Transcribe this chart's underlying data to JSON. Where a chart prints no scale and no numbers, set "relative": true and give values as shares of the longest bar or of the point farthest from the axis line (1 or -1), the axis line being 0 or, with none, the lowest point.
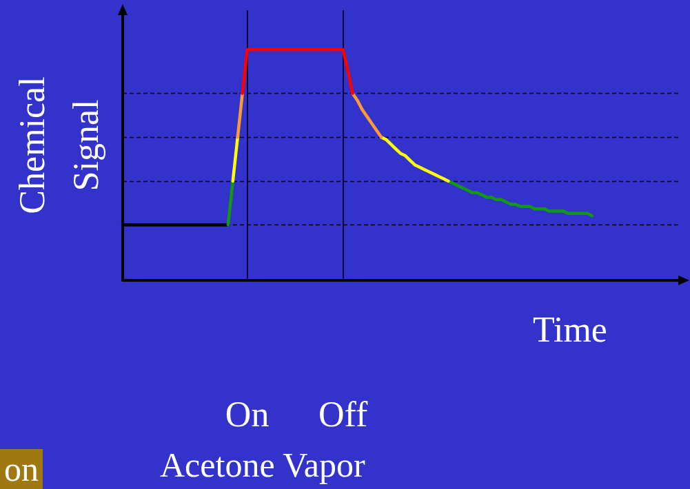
{
  "chart_data": {
    "type": "line",
    "relative": true,
    "xlabel": "Time",
    "ylabel": "Chemical Signal",
    "annotations": [
      "Acetone Vapor",
      "on"
    ],
    "grid": false,
    "marker": "none",
    "line_style": "solid",
    "categories": [
      null,
      null,
      null,
      null,
      null,
      null,
      null,
      null,
      null,
      null,
      null,
      null,
      null,
      null,
      null,
      null,
      null,
      null,
      null,
      null,
      null,
      null,
      null,
      null,
      null,
      null,
      "On",
      null,
      null,
      null,
      null,
      null,
      null,
      null,
      null,
      null,
      null,
      null,
      null,
      null,
      null,
      null,
      null,
      null,
      null,
      null,
      "Off",
      null,
      null,
      null,
      null,
      null,
      null,
      null,
      null,
      null,
      null,
      null,
      null,
      null,
      null,
      null,
      null,
      null,
      null,
      null,
      null,
      null,
      null,
      null,
      null,
      null,
      null,
      null,
      null,
      null,
      null,
      null,
      null,
      null,
      null,
      null,
      null,
      null,
      null,
      null,
      null,
      null,
      null,
      null,
      null,
      null,
      null,
      null,
      null,
      null,
      null,
      null,
      null,
      null,
      null,
      null,
      null,
      null,
      null,
      null,
      null,
      null,
      null,
      null,
      null,
      null,
      null,
      null,
      null,
      null,
      null
    ],
    "ref_lines": [
      {
        "axis": "y",
        "value": 0.24,
        "line_style": "dashed",
        "color": "#000000"
      },
      {
        "axis": "y",
        "value": 0.43,
        "line_style": "dashed",
        "color": "#000000"
      },
      {
        "axis": "y",
        "value": 0.62,
        "line_style": "dashed",
        "color": "#000000"
      },
      {
        "axis": "y",
        "value": 0.81,
        "line_style": "dashed",
        "color": "#000000"
      },
      {
        "axis": "x",
        "value": "On",
        "line_style": "solid",
        "color": "#000000"
      },
      {
        "axis": "x",
        "value": "Off",
        "line_style": "solid",
        "color": "#000000"
      }
    ],
    "series": [
      {
        "color": "#000000",
        "values": [
          0.24,
          0.24,
          0.24,
          0.24,
          0.24,
          0.24,
          0.24,
          0.24,
          0.24,
          0.24,
          0.24,
          0.24,
          0.24,
          0.24,
          0.24,
          0.24,
          0.24,
          0.24,
          0.24,
          0.24,
          0.24,
          0.24,
          0.24,
          null,
          null,
          null,
          null,
          null,
          null,
          null,
          null,
          null,
          null,
          null,
          null,
          null,
          null,
          null,
          null,
          null,
          null,
          null,
          null,
          null,
          null,
          null,
          null,
          null,
          null,
          null,
          null,
          null,
          null,
          null,
          null,
          null,
          null,
          null,
          null,
          null,
          null,
          null,
          null,
          null,
          null,
          null,
          null,
          null,
          null,
          null,
          null,
          null,
          null,
          null,
          null,
          null,
          null,
          null,
          null,
          null,
          null,
          null,
          null,
          null,
          null,
          null,
          null,
          null,
          null,
          null,
          null,
          null,
          null,
          null,
          null,
          null,
          null,
          null,
          null,
          null,
          null,
          null,
          null,
          null,
          null,
          null,
          null,
          null,
          null,
          null,
          null,
          null,
          null,
          null,
          null,
          null,
          null
        ]
      },
      {
        "color": "#119911",
        "values": [
          null,
          null,
          null,
          null,
          null,
          null,
          null,
          null,
          null,
          null,
          null,
          null,
          null,
          null,
          null,
          null,
          null,
          null,
          null,
          null,
          null,
          null,
          0.24,
          0.43,
          null,
          null,
          null,
          null,
          null,
          null,
          null,
          null,
          null,
          null,
          null,
          null,
          null,
          null,
          null,
          null,
          null,
          null,
          null,
          null,
          null,
          null,
          null,
          null,
          null,
          null,
          null,
          null,
          null,
          null,
          null,
          null,
          null,
          null,
          null,
          null,
          null,
          null,
          null,
          null,
          null,
          null,
          null,
          null,
          0.43,
          0.42,
          0.41,
          0.4,
          0.39,
          0.38,
          0.38,
          0.37,
          0.36,
          0.36,
          0.35,
          0.35,
          0.34,
          0.33,
          0.33,
          0.32,
          0.32,
          0.32,
          0.31,
          0.31,
          0.31,
          0.3,
          0.3,
          0.3,
          0.3,
          0.29,
          0.29,
          0.29,
          0.29,
          0.29,
          0.28,
          null,
          null,
          null,
          null,
          null,
          null,
          null,
          null,
          null,
          null,
          null,
          null,
          null,
          null,
          null,
          null,
          null,
          null
        ]
      },
      {
        "color": "#ffff00",
        "values": [
          null,
          null,
          null,
          null,
          null,
          null,
          null,
          null,
          null,
          null,
          null,
          null,
          null,
          null,
          null,
          null,
          null,
          null,
          null,
          null,
          null,
          null,
          null,
          0.43,
          0.62,
          null,
          null,
          null,
          null,
          null,
          null,
          null,
          null,
          null,
          null,
          null,
          null,
          null,
          null,
          null,
          null,
          null,
          null,
          null,
          null,
          null,
          null,
          null,
          null,
          null,
          null,
          null,
          null,
          null,
          0.62,
          0.61,
          0.59,
          0.57,
          0.55,
          0.54,
          0.52,
          0.5,
          0.49,
          0.48,
          0.47,
          0.46,
          0.45,
          0.44,
          0.43,
          null,
          null,
          null,
          null,
          null,
          null,
          null,
          null,
          null,
          null,
          null,
          null,
          null,
          null,
          null,
          null,
          null,
          null,
          null,
          null,
          null,
          null,
          null,
          null,
          null,
          null,
          null,
          null,
          null,
          null,
          null,
          null,
          null,
          null,
          null,
          null,
          null,
          null,
          null,
          null,
          null,
          null,
          null,
          null,
          null,
          null,
          null,
          null
        ]
      },
      {
        "color": "#ff9933",
        "values": [
          null,
          null,
          null,
          null,
          null,
          null,
          null,
          null,
          null,
          null,
          null,
          null,
          null,
          null,
          null,
          null,
          null,
          null,
          null,
          null,
          null,
          null,
          null,
          null,
          0.62,
          0.81,
          null,
          null,
          null,
          null,
          null,
          null,
          null,
          null,
          null,
          null,
          null,
          null,
          null,
          null,
          null,
          null,
          null,
          null,
          null,
          null,
          null,
          null,
          0.81,
          0.78,
          0.74,
          0.71,
          0.68,
          0.65,
          0.62,
          null,
          null,
          null,
          null,
          null,
          null,
          null,
          null,
          null,
          null,
          null,
          null,
          null,
          null,
          null,
          null,
          null,
          null,
          null,
          null,
          null,
          null,
          null,
          null,
          null,
          null,
          null,
          null,
          null,
          null,
          null,
          null,
          null,
          null,
          null,
          null,
          null,
          null,
          null,
          null,
          null,
          null,
          null,
          null,
          null,
          null,
          null,
          null,
          null,
          null,
          null,
          null,
          null,
          null,
          null,
          null,
          null,
          null,
          null,
          null,
          null,
          null
        ]
      },
      {
        "color": "#ff0000",
        "values": [
          null,
          null,
          null,
          null,
          null,
          null,
          null,
          null,
          null,
          null,
          null,
          null,
          null,
          null,
          null,
          null,
          null,
          null,
          null,
          null,
          null,
          null,
          null,
          null,
          null,
          0.81,
          1,
          1,
          1,
          1,
          1,
          1,
          1,
          1,
          1,
          1,
          1,
          1,
          1,
          1,
          1,
          1,
          1,
          1,
          1,
          1,
          1,
          0.91,
          0.81,
          null,
          null,
          null,
          null,
          null,
          null,
          null,
          null,
          null,
          null,
          null,
          null,
          null,
          null,
          null,
          null,
          null,
          null,
          null,
          null,
          null,
          null,
          null,
          null,
          null,
          null,
          null,
          null,
          null,
          null,
          null,
          null,
          null,
          null,
          null,
          null,
          null,
          null,
          null,
          null,
          null,
          null,
          null,
          null,
          null,
          null,
          null,
          null,
          null,
          null,
          null,
          null,
          null,
          null,
          null,
          null,
          null,
          null,
          null,
          null,
          null,
          null,
          null,
          null,
          null,
          null,
          null,
          null
        ]
      }
    ]
  }
}
